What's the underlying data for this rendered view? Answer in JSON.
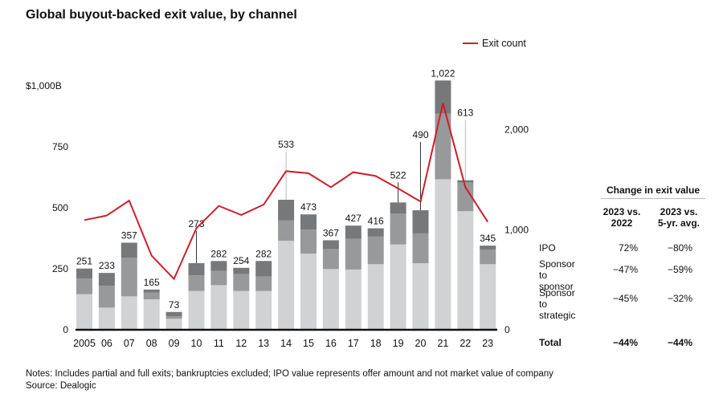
{
  "title": "Global buyout-backed exit value, by channel",
  "notes": "Notes: Includes partial and full exits; bankruptcies excluded; IPO value represents offer amount and not market value of company",
  "source": "Source: Dealogic",
  "colors": {
    "strategic": "#d1d2d4",
    "sponsor": "#98999b",
    "ipo": "#77787a",
    "line": "#cc1f2a"
  },
  "chart_data": {
    "type": "bar",
    "stacked": true,
    "categories": [
      "2005",
      "06",
      "07",
      "08",
      "09",
      "10",
      "11",
      "12",
      "13",
      "14",
      "15",
      "16",
      "17",
      "18",
      "19",
      "20",
      "21",
      "22",
      "23"
    ],
    "series": [
      {
        "name": "Sponsor to strategic",
        "values": [
          146,
          91,
          137,
          125,
          45,
          159,
          183,
          159,
          159,
          365,
          312,
          249,
          247,
          269,
          350,
          273,
          617,
          486,
          269
        ]
      },
      {
        "name": "Sponsor to sponsor",
        "values": [
          64,
          90,
          158,
          27,
          10,
          64,
          58,
          69,
          60,
          83,
          99,
          82,
          126,
          113,
          127,
          122,
          269,
          117,
          60
        ]
      },
      {
        "name": "IPO",
        "values": [
          41,
          52,
          62,
          13,
          18,
          50,
          41,
          26,
          63,
          85,
          62,
          36,
          54,
          34,
          45,
          95,
          136,
          10,
          16
        ]
      }
    ],
    "totals": [
      "251",
      "233",
      "357",
      "165",
      "73",
      "273",
      "282",
      "254",
      "282",
      "533",
      "473",
      "367",
      "427",
      "416",
      "522",
      "490",
      "1,022",
      "613",
      "345"
    ],
    "line": {
      "name": "Exit count",
      "values": [
        1096,
        1142,
        1291,
        741,
        508,
        1016,
        1238,
        1147,
        1251,
        1585,
        1564,
        1425,
        1575,
        1537,
        1412,
        1281,
        2265,
        1425,
        1078
      ]
    },
    "left_axis": {
      "ylim": [
        0,
        1000
      ],
      "ticks": [
        "0",
        "250",
        "500",
        "750",
        "$1,000B"
      ]
    },
    "right_axis": {
      "ylim": [
        0,
        2000
      ],
      "ticks": [
        "0",
        "1,000",
        "2,000"
      ]
    },
    "legend": "top-right"
  },
  "table": {
    "title": "Change in exit value",
    "col1": [
      "2023 vs.",
      "2022"
    ],
    "col2": [
      "2023 vs.",
      "5-yr. avg."
    ],
    "rows": [
      {
        "label": [
          "IPO"
        ],
        "v1": "72%",
        "v2": "−80%"
      },
      {
        "label": [
          "Sponsor",
          "to sponsor"
        ],
        "v1": "−47%",
        "v2": "−59%"
      },
      {
        "label": [
          "Sponsor",
          "to strategic"
        ],
        "v1": "−45%",
        "v2": "−32%"
      }
    ],
    "total": {
      "label": "Total",
      "v1": "−44%",
      "v2": "−44%"
    }
  }
}
